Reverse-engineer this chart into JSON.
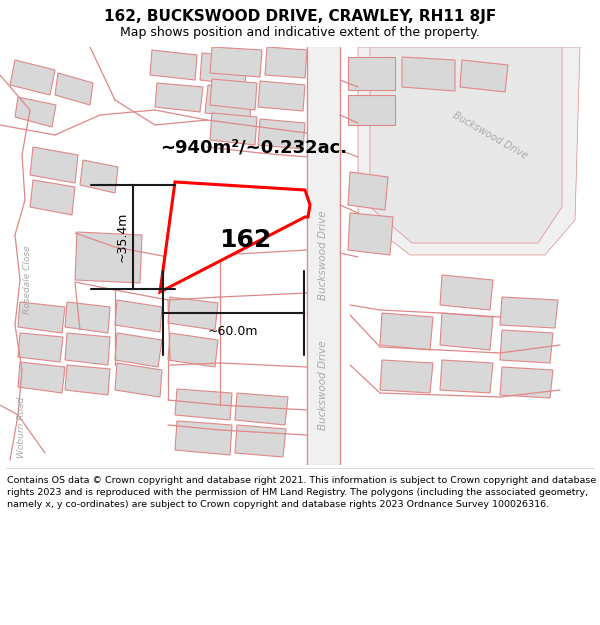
{
  "title_line1": "162, BUCKSWOOD DRIVE, CRAWLEY, RH11 8JF",
  "title_line2": "Map shows position and indicative extent of the property.",
  "footer_text": "Contains OS data © Crown copyright and database right 2021. This information is subject to Crown copyright and database rights 2023 and is reproduced with the permission of HM Land Registry. The polygons (including the associated geometry, namely x, y co-ordinates) are subject to Crown copyright and database rights 2023 Ordnance Survey 100026316.",
  "area_label": "~940m²/~0.232ac.",
  "number_label": "162",
  "dim_width": "~60.0m",
  "dim_height": "~35.4m",
  "bg_color": "#ffffff",
  "build_fill": "#d8d8d8",
  "build_edge": "#e08888",
  "road_line": "#e08888",
  "plot_color": "#ff0000",
  "dim_color": "#1a1a1a",
  "street_color": "#aaaaaa",
  "title_fs": 11,
  "subtitle_fs": 9,
  "area_fs": 13,
  "number_fs": 18,
  "dim_fs": 9,
  "street_fs": 7.5,
  "footer_fs": 6.8,
  "buckswood_v_label": "Buckswood Drive",
  "buckswood_h_label": "Buckswood Drive",
  "rosedale_label": "Rosedale Close",
  "woburn_label": "Woburn Road"
}
